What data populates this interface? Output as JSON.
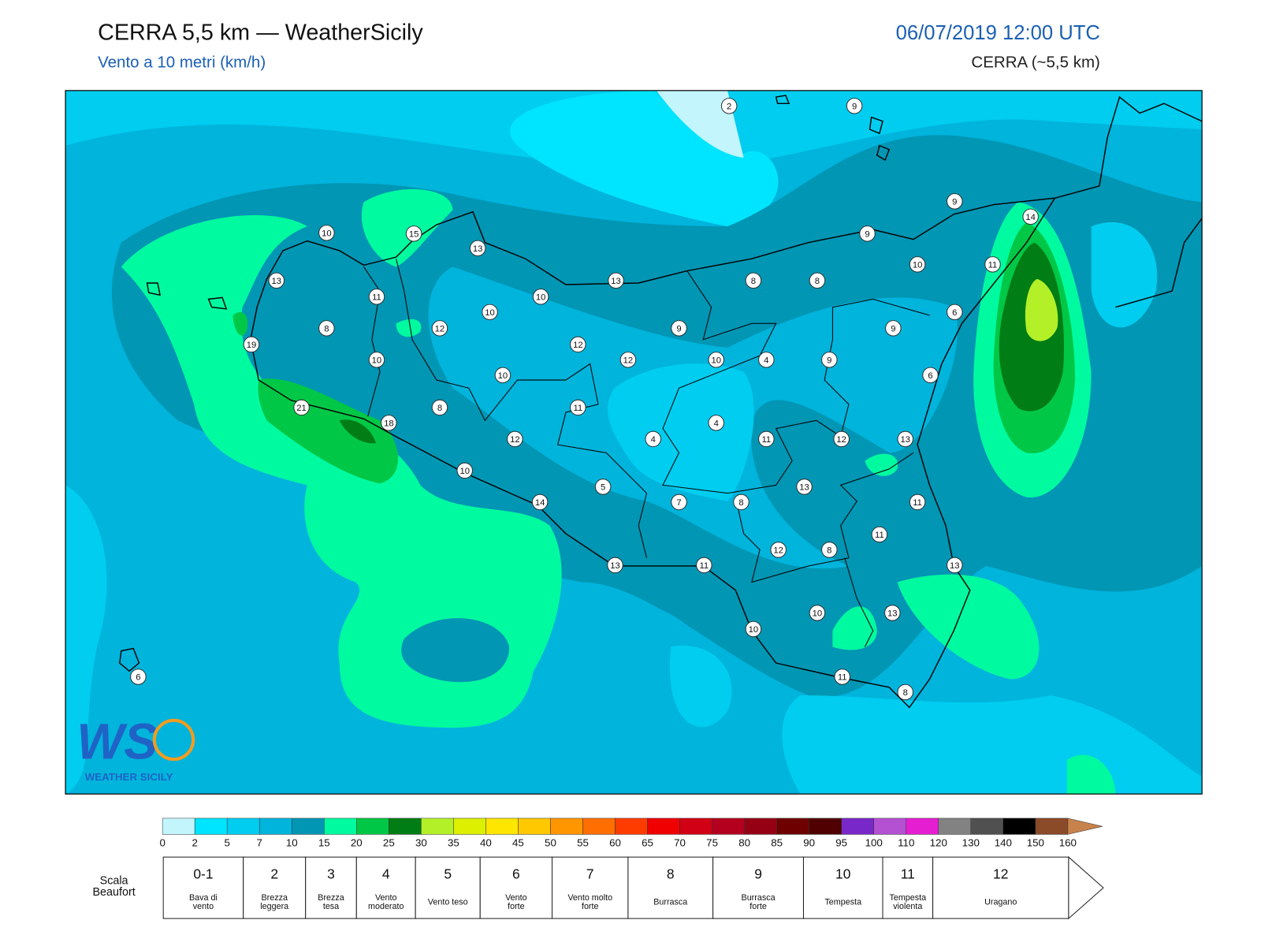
{
  "header": {
    "title": "CERRA 5,5 km — WeatherSicily",
    "subtitle": "Vento a 10 metri (km/h)",
    "datetime": "06/07/2019 12:00 UTC",
    "model": "CERRA (~5,5 km)"
  },
  "map": {
    "wind_labels": [
      2,
      9,
      9,
      14,
      10,
      15,
      13,
      9,
      13,
      10,
      11,
      11,
      10,
      13,
      8,
      8,
      10,
      8,
      12,
      9,
      9,
      6,
      19,
      10,
      12,
      12,
      10,
      4,
      9,
      6,
      10,
      21,
      18,
      8,
      11,
      4,
      12,
      4,
      11,
      12,
      13,
      10,
      5,
      13,
      14,
      7,
      8,
      11,
      11,
      12,
      8,
      13,
      11,
      13,
      10,
      13,
      10,
      6,
      11,
      8
    ]
  },
  "logo": {
    "letters": "WS",
    "text": "WEATHER SICILY"
  },
  "colorbar": {
    "ticks": [
      0,
      2,
      5,
      7,
      10,
      15,
      20,
      25,
      30,
      35,
      40,
      45,
      50,
      55,
      60,
      65,
      70,
      75,
      80,
      85,
      90,
      95,
      100,
      110,
      120,
      130,
      140,
      150,
      160
    ],
    "colors": [
      "#c3f5fd",
      "#00e5ff",
      "#00cdf0",
      "#00b4dc",
      "#0096b4",
      "#00faa0",
      "#00c846",
      "#007d14",
      "#b4f028",
      "#dcf000",
      "#ffe600",
      "#ffc800",
      "#ff9600",
      "#ff6e00",
      "#ff3c00",
      "#f00000",
      "#d20014",
      "#b4001e",
      "#960014",
      "#6e0000",
      "#500000",
      "#7828c8",
      "#b450d2",
      "#e61ed2",
      "#828282",
      "#505050",
      "#000000",
      "#8c4b28",
      "#c8824b"
    ]
  },
  "beaufort": {
    "title": [
      "Scala",
      "Beaufort"
    ],
    "classes": [
      {
        "force": "0-1",
        "name": [
          "Bava di",
          "vento"
        ]
      },
      {
        "force": 2,
        "name": [
          "Brezza",
          "leggera"
        ]
      },
      {
        "force": 3,
        "name": [
          "Brezza",
          "tesa"
        ]
      },
      {
        "force": 4,
        "name": [
          "Vento",
          "moderato"
        ]
      },
      {
        "force": 5,
        "name": [
          "Vento teso"
        ]
      },
      {
        "force": 6,
        "name": [
          "Vento",
          "forte"
        ]
      },
      {
        "force": 7,
        "name": [
          "Vento molto",
          "forte"
        ]
      },
      {
        "force": 8,
        "name": [
          "Burrasca"
        ]
      },
      {
        "force": 9,
        "name": [
          "Burrasca",
          "forte"
        ]
      },
      {
        "force": 10,
        "name": [
          "Tempesta"
        ]
      },
      {
        "force": 11,
        "name": [
          "Tempesta",
          "violenta"
        ]
      },
      {
        "force": 12,
        "name": [
          "Uragano"
        ]
      }
    ]
  }
}
